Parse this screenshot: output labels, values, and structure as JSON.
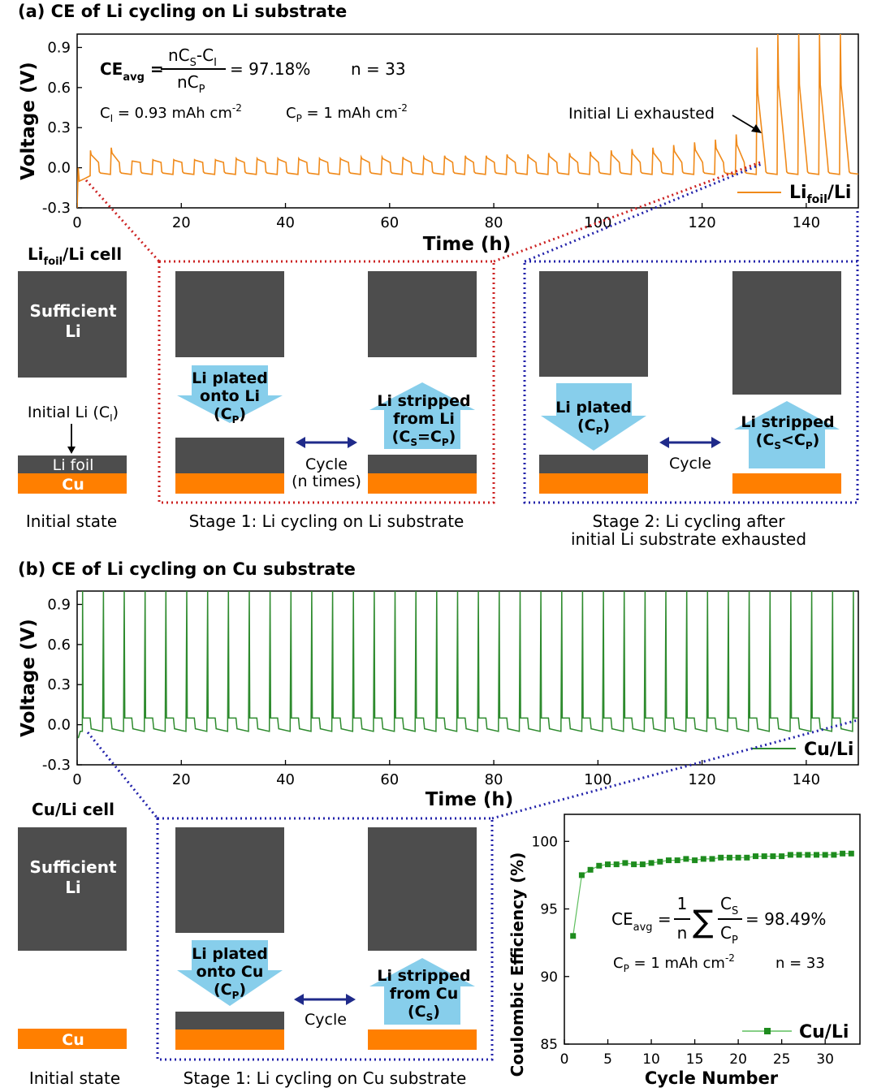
{
  "panel_a": {
    "title": "(a) CE of Li cycling on Li substrate",
    "formula": {
      "lhs": "CE",
      "lhs_sub": "avg",
      "num": "nC",
      "num_sub": "S",
      "num_tail": "-C",
      "num_tail_sub": "I",
      "den": "nC",
      "den_sub": "P",
      "result": "= 97.18%"
    },
    "n_label": "n = 33",
    "ci_label": "C",
    "ci_sub": "I",
    "ci_value": " = 0.93 mAh cm",
    "ci_sup": "-2",
    "cp_label": "C",
    "cp_sub": "P",
    "cp_value": " = 1 mAh cm",
    "cp_sup": "-2",
    "annotation": "Initial Li exhausted",
    "legend_main": "Li",
    "legend_sub": "foil",
    "legend_tail": "/Li",
    "cell_title_main": "Li",
    "cell_title_sub": "foil",
    "cell_title_tail": "/Li cell",
    "sufficient_1": "Sufficient",
    "sufficient_2": "Li",
    "initial_li_label": "Initial Li (C",
    "initial_li_sub": "I",
    "initial_li_close": ")",
    "li_foil": "Li foil",
    "cu": "Cu",
    "initial_state": "Initial state",
    "s1_plated_1": "Li plated",
    "s1_plated_2": "onto Li",
    "s1_plated_3": "(C",
    "s1_plated_3_sub": "P",
    "s1_plated_3_close": ")",
    "s1_stripped_1": "Li stripped",
    "s1_stripped_2": "from Li",
    "s1_stripped_3": "(C",
    "s1_stripped_3_sub1": "S",
    "s1_stripped_3_mid": "=C",
    "s1_stripped_3_sub2": "P",
    "s1_stripped_3_close": ")",
    "cycle": "Cycle",
    "n_times": "(n times)",
    "stage1": "Stage 1: Li cycling on Li substrate",
    "s2_plated_1": "Li plated",
    "s2_plated_2": "(C",
    "s2_plated_2_sub": "P",
    "s2_plated_2_close": ")",
    "s2_stripped_1": "Li stripped",
    "s2_stripped_2": "(C",
    "s2_stripped_2_sub1": "S",
    "s2_stripped_2_mid": "<C",
    "s2_stripped_2_sub2": "P",
    "s2_stripped_2_close": ")",
    "stage2_1": "Stage 2: Li cycling after",
    "stage2_2": "initial Li substrate exhausted"
  },
  "panel_b": {
    "title": "(b) CE of Li cycling on Cu substrate",
    "legend": "Cu/Li",
    "cell_title": "Cu/Li cell",
    "sufficient_1": "Sufficient",
    "sufficient_2": "Li",
    "cu": "Cu",
    "initial_state": "Initial state",
    "plated_1": "Li plated",
    "plated_2": "onto Cu",
    "plated_3": "(C",
    "plated_3_sub": "P",
    "plated_3_close": ")",
    "stripped_1": "Li stripped",
    "stripped_2": "from Cu",
    "stripped_3": "(C",
    "stripped_3_sub": "S",
    "stripped_3_close": ")",
    "cycle": "Cycle",
    "stage1": "Stage 1: Li cycling on Cu substrate",
    "formula": {
      "lhs": "CE",
      "lhs_sub": "avg",
      "frac_num": "1",
      "frac_den": "n",
      "sum": "∑",
      "cs": "C",
      "cs_sub": "S",
      "cp": "C",
      "cp_sub": "P",
      "result": "= 98.49%"
    },
    "cp_label": "C",
    "cp_sub": "P",
    "cp_value": " = 1 mAh cm",
    "cp_sup": "-2",
    "n_label": "n = 33"
  },
  "colors": {
    "orange": "#F08A1A",
    "green": "#2E8B2E",
    "dark_li": "#4D4D4D",
    "cu": "#FF7F00",
    "arrow_blue": "#87CEEB",
    "red_dot": "#CC2222",
    "blue_dot": "#2222AA",
    "dbl_arrow": "#1F2A8A"
  },
  "chart_data": [
    {
      "type": "line",
      "panel": "a",
      "xlabel": "Time (h)",
      "ylabel": "Voltage (V)",
      "xlim": [
        0,
        150
      ],
      "ylim": [
        -0.3,
        1.0
      ],
      "xticks": [
        0,
        20,
        40,
        60,
        80,
        100,
        120,
        140
      ],
      "yticks": [
        -0.3,
        0.0,
        0.3,
        0.6,
        0.9
      ],
      "series": [
        {
          "name": "Lifoil/Li",
          "cycle_period_h": 4,
          "plating_voltage": -0.05,
          "stripping_voltage_stage1": 0.05,
          "stripping_spike_stage2": 1.0,
          "spike_heights": [
            0.13,
            0.15,
            0.05,
            0.06,
            0.06,
            0.06,
            0.06,
            0.07,
            0.07,
            0.07,
            0.07,
            0.07,
            0.07,
            0.08,
            0.08,
            0.08,
            0.08,
            0.09,
            0.09,
            0.09,
            0.1,
            0.1,
            0.11,
            0.11,
            0.12,
            0.13,
            0.14,
            0.15,
            0.17,
            0.19,
            0.21,
            0.25,
            0.9,
            1.0,
            1.0,
            1.0,
            1.0,
            1.0
          ],
          "exhausted_at_h": 132
        }
      ]
    },
    {
      "type": "line",
      "panel": "b",
      "xlabel": "Time (h)",
      "ylabel": "Voltage (V)",
      "xlim": [
        0,
        150
      ],
      "ylim": [
        -0.3,
        1.0
      ],
      "xticks": [
        0,
        20,
        40,
        60,
        80,
        100,
        120,
        140
      ],
      "yticks": [
        -0.3,
        0.0,
        0.3,
        0.6,
        0.9
      ],
      "series": [
        {
          "name": "Cu/Li",
          "cycle_period_h": 4,
          "plating_voltage": -0.05,
          "baseline_peak": 0.05,
          "spike_voltage": 1.0
        }
      ]
    },
    {
      "type": "scatter",
      "panel": "b-inset",
      "xlabel": "Cycle Number",
      "ylabel": "Coulombic Efficiency (%)",
      "xlim": [
        0,
        34
      ],
      "ylim": [
        85,
        102
      ],
      "xticks": [
        0,
        5,
        10,
        15,
        20,
        25,
        30
      ],
      "yticks": [
        85,
        90,
        95,
        100
      ],
      "series": [
        {
          "name": "Cu/Li",
          "x": [
            1,
            2,
            3,
            4,
            5,
            6,
            7,
            8,
            9,
            10,
            11,
            12,
            13,
            14,
            15,
            16,
            17,
            18,
            19,
            20,
            21,
            22,
            23,
            24,
            25,
            26,
            27,
            28,
            29,
            30,
            31,
            32,
            33
          ],
          "values": [
            93.0,
            97.5,
            97.9,
            98.2,
            98.3,
            98.3,
            98.4,
            98.3,
            98.3,
            98.4,
            98.5,
            98.6,
            98.6,
            98.7,
            98.6,
            98.7,
            98.7,
            98.8,
            98.8,
            98.8,
            98.8,
            98.9,
            98.9,
            98.9,
            98.9,
            99.0,
            99.0,
            99.0,
            99.0,
            99.0,
            99.0,
            99.1,
            99.1
          ]
        }
      ]
    }
  ]
}
